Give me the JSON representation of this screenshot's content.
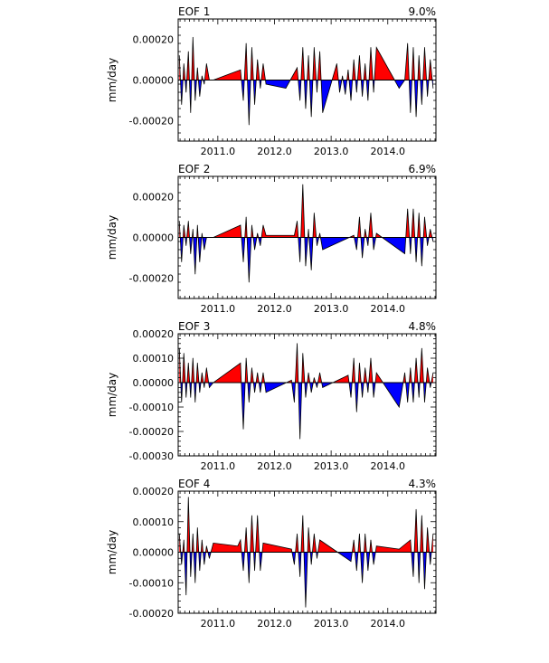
{
  "chart_data": [
    {
      "type": "area",
      "title": "EOF 1",
      "variance_label": "9.0%",
      "xlabel": "",
      "ylabel": "mm/day",
      "xlim": [
        2010.3,
        2014.85
      ],
      "ylim": [
        -0.0003,
        0.0003
      ],
      "yticks": [
        -0.0002,
        0.0,
        0.0002
      ],
      "ytick_labels": [
        "-0.00020",
        "0.00000",
        "0.00020"
      ],
      "xticks": [
        2011.0,
        2012.0,
        2013.0,
        2014.0
      ],
      "xtick_labels": [
        "2011.0",
        "2012.0",
        "2013.0",
        "2014.0"
      ],
      "positive_color": "#ff0000",
      "negative_color": "#0000ff",
      "grid": false,
      "x": [
        2010.32,
        2010.36,
        2010.4,
        2010.44,
        2010.48,
        2010.52,
        2010.56,
        2010.6,
        2010.64,
        2010.68,
        2010.72,
        2010.76,
        2010.8,
        2010.85,
        2010.92,
        2011.4,
        2011.45,
        2011.5,
        2011.55,
        2011.6,
        2011.65,
        2011.7,
        2011.75,
        2011.8,
        2011.85,
        2012.2,
        2012.4,
        2012.45,
        2012.5,
        2012.55,
        2012.6,
        2012.65,
        2012.7,
        2012.75,
        2012.8,
        2012.85,
        2013.1,
        2013.15,
        2013.2,
        2013.25,
        2013.3,
        2013.35,
        2013.4,
        2013.45,
        2013.5,
        2013.55,
        2013.6,
        2013.65,
        2013.7,
        2013.75,
        2013.8,
        2014.2,
        2014.3,
        2014.35,
        2014.4,
        2014.45,
        2014.5,
        2014.55,
        2014.6,
        2014.65,
        2014.7,
        2014.75,
        2014.8
      ],
      "values": [
        0.00012,
        -0.00012,
        8e-05,
        -6e-05,
        0.00014,
        -0.00016,
        0.00021,
        -0.0001,
        6e-05,
        -8e-05,
        2e-05,
        -2e-05,
        8e-05,
        0.0,
        0.0,
        5e-05,
        -0.0001,
        0.00018,
        -0.00022,
        0.00016,
        -0.00012,
        0.0001,
        -4e-05,
        8e-05,
        -2e-05,
        -4e-05,
        6e-05,
        -0.0001,
        0.00016,
        -0.00014,
        0.00012,
        -0.00018,
        0.00016,
        -6e-05,
        0.00014,
        -0.00016,
        8e-05,
        -6e-05,
        2e-05,
        -7e-05,
        5e-05,
        -0.0001,
        0.0001,
        -6e-05,
        0.00012,
        -8e-05,
        8e-05,
        -0.0001,
        0.00016,
        -6e-05,
        0.00016,
        -4e-05,
        0.0,
        0.00018,
        -0.00016,
        0.00016,
        -0.00018,
        0.00012,
        -0.00012,
        0.00016,
        -8e-05,
        0.0001,
        -4e-05
      ]
    },
    {
      "type": "area",
      "title": "EOF 2",
      "variance_label": "6.9%",
      "xlabel": "",
      "ylabel": "mm/day",
      "xlim": [
        2010.3,
        2014.85
      ],
      "ylim": [
        -0.0003,
        0.0003
      ],
      "yticks": [
        -0.0002,
        0.0,
        0.0002
      ],
      "ytick_labels": [
        "-0.00020",
        "0.00000",
        "0.00020"
      ],
      "xticks": [
        2011.0,
        2012.0,
        2013.0,
        2014.0
      ],
      "xtick_labels": [
        "2011.0",
        "2012.0",
        "2013.0",
        "2014.0"
      ],
      "positive_color": "#ff0000",
      "negative_color": "#0000ff",
      "grid": false,
      "x": [
        2010.32,
        2010.36,
        2010.4,
        2010.44,
        2010.48,
        2010.52,
        2010.56,
        2010.6,
        2010.64,
        2010.68,
        2010.72,
        2010.76,
        2010.8,
        2010.85,
        2010.92,
        2011.4,
        2011.45,
        2011.5,
        2011.55,
        2011.6,
        2011.65,
        2011.7,
        2011.75,
        2011.8,
        2011.85,
        2012.35,
        2012.4,
        2012.45,
        2012.5,
        2012.55,
        2012.6,
        2012.65,
        2012.7,
        2012.75,
        2012.8,
        2012.85,
        2013.4,
        2013.45,
        2013.5,
        2013.55,
        2013.6,
        2013.65,
        2013.7,
        2013.75,
        2013.8,
        2014.3,
        2014.35,
        2014.4,
        2014.45,
        2014.5,
        2014.55,
        2014.6,
        2014.65,
        2014.7,
        2014.75,
        2014.8
      ],
      "values": [
        8e-05,
        -0.00012,
        6e-05,
        -4e-05,
        8e-05,
        -8e-05,
        4e-05,
        -0.00018,
        6e-05,
        -0.00012,
        2e-05,
        -6e-05,
        0.0,
        0.0,
        0.0,
        6e-05,
        -0.00012,
        0.0001,
        -0.00022,
        6e-05,
        -6e-05,
        2e-05,
        -4e-05,
        6e-05,
        1e-05,
        1e-05,
        8e-05,
        -0.00012,
        0.00026,
        -0.00014,
        4e-05,
        -0.00016,
        0.00012,
        -4e-05,
        2e-05,
        -6e-05,
        1e-05,
        -6e-05,
        0.0001,
        -0.0001,
        4e-05,
        -4e-05,
        0.00012,
        -6e-05,
        2e-05,
        -8e-05,
        0.00014,
        -8e-05,
        0.00014,
        -0.00012,
        0.00012,
        -0.00014,
        0.0001,
        -4e-05,
        4e-05,
        -2e-05
      ]
    },
    {
      "type": "area",
      "title": "EOF 3",
      "variance_label": "4.8%",
      "xlabel": "",
      "ylabel": "mm/day",
      "xlim": [
        2010.3,
        2014.85
      ],
      "ylim": [
        -0.0003,
        0.0002
      ],
      "yticks": [
        -0.0003,
        -0.0002,
        -0.0001,
        0.0,
        0.0001,
        0.0002
      ],
      "ytick_labels": [
        "-0.00030",
        "-0.00020",
        "-0.00010",
        "0.00000",
        "0.00010",
        "0.00020"
      ],
      "xticks": [
        2011.0,
        2012.0,
        2013.0,
        2014.0
      ],
      "xtick_labels": [
        "2011.0",
        "2012.0",
        "2013.0",
        "2014.0"
      ],
      "positive_color": "#ff0000",
      "negative_color": "#0000ff",
      "grid": false,
      "x": [
        2010.32,
        2010.36,
        2010.4,
        2010.44,
        2010.48,
        2010.52,
        2010.56,
        2010.6,
        2010.64,
        2010.68,
        2010.72,
        2010.76,
        2010.8,
        2010.85,
        2010.92,
        2011.4,
        2011.45,
        2011.5,
        2011.55,
        2011.6,
        2011.65,
        2011.7,
        2011.75,
        2011.8,
        2011.85,
        2012.3,
        2012.35,
        2012.4,
        2012.45,
        2012.5,
        2012.55,
        2012.6,
        2012.65,
        2012.7,
        2012.75,
        2012.8,
        2012.85,
        2013.3,
        2013.35,
        2013.4,
        2013.45,
        2013.5,
        2013.55,
        2013.6,
        2013.65,
        2013.7,
        2013.75,
        2013.8,
        2014.2,
        2014.3,
        2014.35,
        2014.4,
        2014.45,
        2014.5,
        2014.55,
        2014.6,
        2014.65,
        2014.7,
        2014.75,
        2014.8
      ],
      "values": [
        0.00014,
        -8e-05,
        0.00012,
        -6e-05,
        8e-05,
        -6e-05,
        0.0001,
        -8e-05,
        8e-05,
        -4e-05,
        4e-05,
        -2e-05,
        6e-05,
        -2e-05,
        0.0,
        8e-05,
        -0.00019,
        0.0001,
        -8e-05,
        6e-05,
        -4e-05,
        4e-05,
        -4e-05,
        4e-05,
        -4e-05,
        1e-05,
        -8e-05,
        0.00016,
        -0.00023,
        0.00012,
        -6e-05,
        4e-05,
        -4e-05,
        2e-05,
        -2e-05,
        4e-05,
        -2e-05,
        3e-05,
        -6e-05,
        0.0001,
        -0.00012,
        8e-05,
        -6e-05,
        6e-05,
        -4e-05,
        0.0001,
        -6e-05,
        4e-05,
        -0.0001,
        4e-05,
        -8e-05,
        6e-05,
        -8e-05,
        0.0001,
        -6e-05,
        0.00014,
        -8e-05,
        6e-05,
        -2e-05,
        4e-05
      ]
    },
    {
      "type": "area",
      "title": "EOF 4",
      "variance_label": "4.3%",
      "xlabel": "",
      "ylabel": "mm/day",
      "xlim": [
        2010.3,
        2014.85
      ],
      "ylim": [
        -0.0002,
        0.0002
      ],
      "yticks": [
        -0.0002,
        -0.0001,
        0.0,
        0.0001,
        0.0002
      ],
      "ytick_labels": [
        "-0.00020",
        "-0.00010",
        "0.00000",
        "0.00010",
        "0.00020"
      ],
      "xticks": [
        2011.0,
        2012.0,
        2013.0,
        2014.0
      ],
      "xtick_labels": [
        "2011.0",
        "2012.0",
        "2013.0",
        "2014.0"
      ],
      "positive_color": "#ff0000",
      "negative_color": "#0000ff",
      "grid": false,
      "x": [
        2010.32,
        2010.36,
        2010.4,
        2010.44,
        2010.48,
        2010.52,
        2010.56,
        2010.6,
        2010.64,
        2010.68,
        2010.72,
        2010.76,
        2010.8,
        2010.85,
        2010.92,
        2011.35,
        2011.4,
        2011.45,
        2011.5,
        2011.55,
        2011.6,
        2011.65,
        2011.7,
        2011.75,
        2011.8,
        2012.3,
        2012.35,
        2012.4,
        2012.45,
        2012.5,
        2012.55,
        2012.6,
        2012.65,
        2012.7,
        2012.75,
        2012.8,
        2013.35,
        2013.4,
        2013.45,
        2013.5,
        2013.55,
        2013.6,
        2013.65,
        2013.7,
        2013.75,
        2013.8,
        2014.2,
        2014.4,
        2014.45,
        2014.5,
        2014.55,
        2014.6,
        2014.65,
        2014.7,
        2014.75,
        2014.8
      ],
      "values": [
        6e-05,
        -4e-05,
        4e-05,
        -0.00014,
        0.00018,
        -8e-05,
        6e-05,
        -0.0001,
        8e-05,
        -6e-05,
        4e-05,
        -4e-05,
        2e-05,
        -2e-05,
        3e-05,
        2e-05,
        4e-05,
        -6e-05,
        8e-05,
        -0.0001,
        0.00012,
        -6e-05,
        0.00012,
        -6e-05,
        3e-05,
        1e-05,
        -4e-05,
        6e-05,
        -8e-05,
        0.00012,
        -0.00018,
        8e-05,
        -4e-05,
        6e-05,
        -2e-05,
        4e-05,
        -3e-05,
        4e-05,
        -6e-05,
        6e-05,
        -0.0001,
        6e-05,
        -6e-05,
        4e-05,
        -4e-05,
        2e-05,
        1e-05,
        4e-05,
        -8e-05,
        0.00014,
        -0.0001,
        0.00012,
        -0.00012,
        8e-05,
        -4e-05,
        6e-05
      ]
    }
  ]
}
